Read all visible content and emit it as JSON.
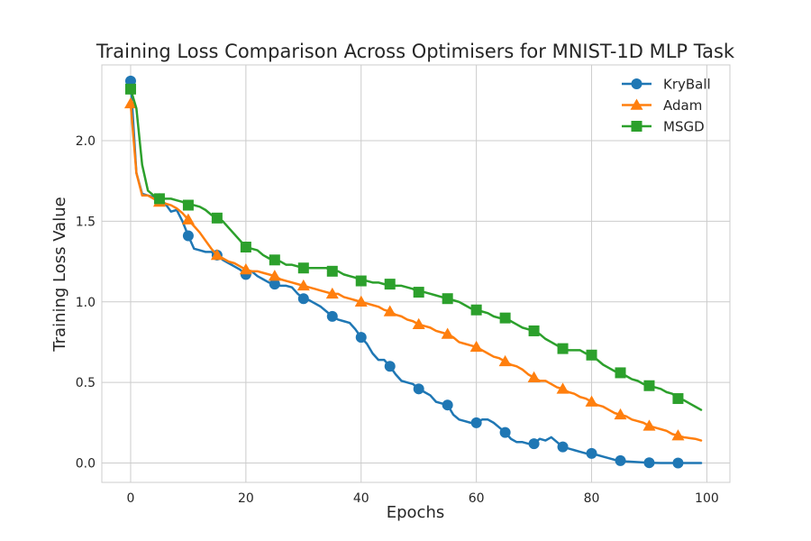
{
  "chart_data": {
    "type": "line",
    "title": "Training Loss Comparison Across Optimisers for MNIST-1D MLP Task",
    "xlabel": "Epochs",
    "ylabel": "Training Loss Value",
    "xlim": [
      -5,
      104
    ],
    "ylim": [
      -0.12,
      2.47
    ],
    "xticks": [
      0,
      20,
      40,
      60,
      80,
      100
    ],
    "xtick_labels": [
      "0",
      "20",
      "40",
      "60",
      "80",
      "100"
    ],
    "yticks": [
      0.0,
      0.5,
      1.0,
      1.5,
      2.0
    ],
    "ytick_labels": [
      "0.0",
      "0.5",
      "1.0",
      "1.5",
      "2.0"
    ],
    "grid": true,
    "legend_position": "top-right",
    "series": [
      {
        "name": "KryBall",
        "color": "#1f77b4",
        "marker": "circle",
        "marker_every": 5,
        "points": [
          [
            0,
            2.37
          ],
          [
            1,
            1.8
          ],
          [
            2,
            1.67
          ],
          [
            3,
            1.66
          ],
          [
            4,
            1.65
          ],
          [
            5,
            1.64
          ],
          [
            6,
            1.61
          ],
          [
            7,
            1.56
          ],
          [
            8,
            1.57
          ],
          [
            9,
            1.5
          ],
          [
            10,
            1.41
          ],
          [
            11,
            1.33
          ],
          [
            12,
            1.32
          ],
          [
            13,
            1.31
          ],
          [
            14,
            1.31
          ],
          [
            15,
            1.29
          ],
          [
            16,
            1.26
          ],
          [
            17,
            1.24
          ],
          [
            18,
            1.22
          ],
          [
            19,
            1.2
          ],
          [
            20,
            1.17
          ],
          [
            21,
            1.19
          ],
          [
            22,
            1.16
          ],
          [
            23,
            1.14
          ],
          [
            24,
            1.12
          ],
          [
            25,
            1.11
          ],
          [
            26,
            1.1
          ],
          [
            27,
            1.1
          ],
          [
            28,
            1.09
          ],
          [
            29,
            1.05
          ],
          [
            30,
            1.02
          ],
          [
            31,
            1.01
          ],
          [
            32,
            0.99
          ],
          [
            33,
            0.97
          ],
          [
            34,
            0.94
          ],
          [
            35,
            0.91
          ],
          [
            36,
            0.89
          ],
          [
            37,
            0.88
          ],
          [
            38,
            0.87
          ],
          [
            39,
            0.83
          ],
          [
            40,
            0.78
          ],
          [
            41,
            0.74
          ],
          [
            42,
            0.68
          ],
          [
            43,
            0.64
          ],
          [
            44,
            0.64
          ],
          [
            45,
            0.6
          ],
          [
            46,
            0.55
          ],
          [
            47,
            0.51
          ],
          [
            48,
            0.5
          ],
          [
            49,
            0.49
          ],
          [
            50,
            0.46
          ],
          [
            51,
            0.44
          ],
          [
            52,
            0.42
          ],
          [
            53,
            0.38
          ],
          [
            54,
            0.37
          ],
          [
            55,
            0.36
          ],
          [
            56,
            0.3
          ],
          [
            57,
            0.27
          ],
          [
            58,
            0.26
          ],
          [
            59,
            0.25
          ],
          [
            60,
            0.25
          ],
          [
            61,
            0.27
          ],
          [
            62,
            0.27
          ],
          [
            63,
            0.25
          ],
          [
            64,
            0.22
          ],
          [
            65,
            0.19
          ],
          [
            66,
            0.15
          ],
          [
            67,
            0.13
          ],
          [
            68,
            0.13
          ],
          [
            69,
            0.12
          ],
          [
            70,
            0.12
          ],
          [
            71,
            0.15
          ],
          [
            72,
            0.14
          ],
          [
            73,
            0.16
          ],
          [
            74,
            0.13
          ],
          [
            75,
            0.1
          ],
          [
            76,
            0.09
          ],
          [
            77,
            0.08
          ],
          [
            78,
            0.07
          ],
          [
            79,
            0.06
          ],
          [
            80,
            0.06
          ],
          [
            81,
            0.05
          ],
          [
            82,
            0.04
          ],
          [
            83,
            0.03
          ],
          [
            84,
            0.02
          ],
          [
            85,
            0.015
          ],
          [
            86,
            0.01
          ],
          [
            87,
            0.008
          ],
          [
            88,
            0.006
          ],
          [
            89,
            0.004
          ],
          [
            90,
            0.002
          ],
          [
            91,
            0.001
          ],
          [
            92,
            0.0
          ],
          [
            93,
            0.0
          ],
          [
            94,
            0.0
          ],
          [
            95,
            0.0
          ],
          [
            96,
            0.0
          ],
          [
            97,
            0.0
          ],
          [
            98,
            0.0
          ],
          [
            99,
            0.0
          ]
        ]
      },
      {
        "name": "Adam",
        "color": "#ff7f0e",
        "marker": "triangle",
        "marker_every": 5,
        "points": [
          [
            0,
            2.23
          ],
          [
            1,
            1.8
          ],
          [
            2,
            1.66
          ],
          [
            3,
            1.66
          ],
          [
            4,
            1.64
          ],
          [
            5,
            1.62
          ],
          [
            6,
            1.61
          ],
          [
            7,
            1.6
          ],
          [
            8,
            1.58
          ],
          [
            9,
            1.55
          ],
          [
            10,
            1.51
          ],
          [
            11,
            1.47
          ],
          [
            12,
            1.43
          ],
          [
            13,
            1.38
          ],
          [
            14,
            1.33
          ],
          [
            15,
            1.29
          ],
          [
            16,
            1.27
          ],
          [
            17,
            1.25
          ],
          [
            18,
            1.24
          ],
          [
            19,
            1.22
          ],
          [
            20,
            1.2
          ],
          [
            21,
            1.19
          ],
          [
            22,
            1.19
          ],
          [
            23,
            1.18
          ],
          [
            24,
            1.17
          ],
          [
            25,
            1.16
          ],
          [
            26,
            1.14
          ],
          [
            27,
            1.13
          ],
          [
            28,
            1.12
          ],
          [
            29,
            1.11
          ],
          [
            30,
            1.1
          ],
          [
            31,
            1.09
          ],
          [
            32,
            1.08
          ],
          [
            33,
            1.07
          ],
          [
            34,
            1.06
          ],
          [
            35,
            1.05
          ],
          [
            36,
            1.05
          ],
          [
            37,
            1.03
          ],
          [
            38,
            1.02
          ],
          [
            39,
            1.01
          ],
          [
            40,
            1.0
          ],
          [
            41,
            0.99
          ],
          [
            42,
            0.98
          ],
          [
            43,
            0.97
          ],
          [
            44,
            0.95
          ],
          [
            45,
            0.94
          ],
          [
            46,
            0.92
          ],
          [
            47,
            0.91
          ],
          [
            48,
            0.89
          ],
          [
            49,
            0.88
          ],
          [
            50,
            0.86
          ],
          [
            51,
            0.85
          ],
          [
            52,
            0.84
          ],
          [
            53,
            0.82
          ],
          [
            54,
            0.81
          ],
          [
            55,
            0.8
          ],
          [
            56,
            0.78
          ],
          [
            57,
            0.75
          ],
          [
            58,
            0.74
          ],
          [
            59,
            0.73
          ],
          [
            60,
            0.72
          ],
          [
            61,
            0.7
          ],
          [
            62,
            0.68
          ],
          [
            63,
            0.66
          ],
          [
            64,
            0.65
          ],
          [
            65,
            0.63
          ],
          [
            66,
            0.61
          ],
          [
            67,
            0.6
          ],
          [
            68,
            0.58
          ],
          [
            69,
            0.55
          ],
          [
            70,
            0.53
          ],
          [
            71,
            0.51
          ],
          [
            72,
            0.51
          ],
          [
            73,
            0.49
          ],
          [
            74,
            0.47
          ],
          [
            75,
            0.46
          ],
          [
            76,
            0.44
          ],
          [
            77,
            0.43
          ],
          [
            78,
            0.41
          ],
          [
            79,
            0.4
          ],
          [
            80,
            0.38
          ],
          [
            81,
            0.36
          ],
          [
            82,
            0.35
          ],
          [
            83,
            0.33
          ],
          [
            84,
            0.31
          ],
          [
            85,
            0.3
          ],
          [
            86,
            0.29
          ],
          [
            87,
            0.27
          ],
          [
            88,
            0.26
          ],
          [
            89,
            0.25
          ],
          [
            90,
            0.23
          ],
          [
            91,
            0.22
          ],
          [
            92,
            0.21
          ],
          [
            93,
            0.2
          ],
          [
            94,
            0.18
          ],
          [
            95,
            0.17
          ],
          [
            96,
            0.16
          ],
          [
            97,
            0.155
          ],
          [
            98,
            0.15
          ],
          [
            99,
            0.14
          ]
        ]
      },
      {
        "name": "MSGD",
        "color": "#2ca02c",
        "marker": "square",
        "marker_every": 5,
        "points": [
          [
            0,
            2.32
          ],
          [
            1,
            2.2
          ],
          [
            2,
            1.85
          ],
          [
            3,
            1.69
          ],
          [
            4,
            1.66
          ],
          [
            5,
            1.64
          ],
          [
            6,
            1.64
          ],
          [
            7,
            1.64
          ],
          [
            8,
            1.63
          ],
          [
            9,
            1.62
          ],
          [
            10,
            1.6
          ],
          [
            11,
            1.6
          ],
          [
            12,
            1.59
          ],
          [
            13,
            1.57
          ],
          [
            14,
            1.54
          ],
          [
            15,
            1.52
          ],
          [
            16,
            1.5
          ],
          [
            17,
            1.46
          ],
          [
            18,
            1.42
          ],
          [
            19,
            1.38
          ],
          [
            20,
            1.34
          ],
          [
            21,
            1.33
          ],
          [
            22,
            1.32
          ],
          [
            23,
            1.29
          ],
          [
            24,
            1.27
          ],
          [
            25,
            1.26
          ],
          [
            26,
            1.25
          ],
          [
            27,
            1.23
          ],
          [
            28,
            1.23
          ],
          [
            29,
            1.22
          ],
          [
            30,
            1.21
          ],
          [
            31,
            1.21
          ],
          [
            32,
            1.21
          ],
          [
            33,
            1.21
          ],
          [
            34,
            1.21
          ],
          [
            35,
            1.19
          ],
          [
            36,
            1.19
          ],
          [
            37,
            1.17
          ],
          [
            38,
            1.16
          ],
          [
            39,
            1.15
          ],
          [
            40,
            1.13
          ],
          [
            41,
            1.13
          ],
          [
            42,
            1.12
          ],
          [
            43,
            1.12
          ],
          [
            44,
            1.11
          ],
          [
            45,
            1.11
          ],
          [
            46,
            1.1
          ],
          [
            47,
            1.1
          ],
          [
            48,
            1.09
          ],
          [
            49,
            1.08
          ],
          [
            50,
            1.06
          ],
          [
            51,
            1.06
          ],
          [
            52,
            1.05
          ],
          [
            53,
            1.04
          ],
          [
            54,
            1.03
          ],
          [
            55,
            1.02
          ],
          [
            56,
            1.01
          ],
          [
            57,
            1.0
          ],
          [
            58,
            0.98
          ],
          [
            59,
            0.96
          ],
          [
            60,
            0.95
          ],
          [
            61,
            0.94
          ],
          [
            62,
            0.93
          ],
          [
            63,
            0.91
          ],
          [
            64,
            0.9
          ],
          [
            65,
            0.9
          ],
          [
            66,
            0.88
          ],
          [
            67,
            0.86
          ],
          [
            68,
            0.84
          ],
          [
            69,
            0.83
          ],
          [
            70,
            0.82
          ],
          [
            71,
            0.8
          ],
          [
            72,
            0.77
          ],
          [
            73,
            0.75
          ],
          [
            74,
            0.73
          ],
          [
            75,
            0.71
          ],
          [
            76,
            0.7
          ],
          [
            77,
            0.7
          ],
          [
            78,
            0.7
          ],
          [
            79,
            0.68
          ],
          [
            80,
            0.67
          ],
          [
            81,
            0.64
          ],
          [
            82,
            0.61
          ],
          [
            83,
            0.59
          ],
          [
            84,
            0.57
          ],
          [
            85,
            0.56
          ],
          [
            86,
            0.54
          ],
          [
            87,
            0.52
          ],
          [
            88,
            0.51
          ],
          [
            89,
            0.49
          ],
          [
            90,
            0.48
          ],
          [
            91,
            0.47
          ],
          [
            92,
            0.46
          ],
          [
            93,
            0.44
          ],
          [
            94,
            0.43
          ],
          [
            95,
            0.4
          ],
          [
            96,
            0.39
          ],
          [
            97,
            0.37
          ],
          [
            98,
            0.35
          ],
          [
            99,
            0.33
          ]
        ]
      }
    ]
  }
}
